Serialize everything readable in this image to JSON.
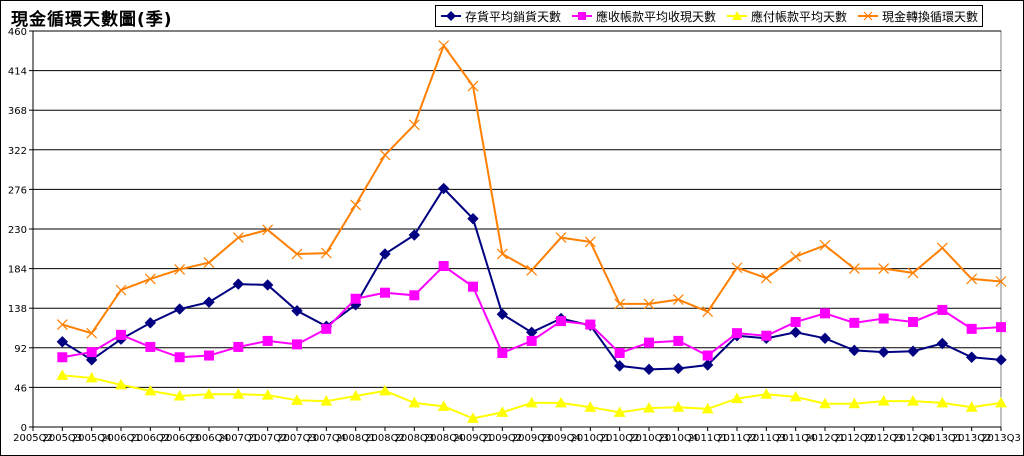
{
  "chart_data": {
    "type": "line",
    "title": "現金循環天數圖(季)",
    "xlabel": "",
    "ylabel": "",
    "ylim": [
      0,
      460
    ],
    "yticks": [
      0,
      46,
      92,
      138,
      184,
      230,
      276,
      322,
      368,
      414,
      460
    ],
    "grid": true,
    "legend_position": "top-right",
    "categories": [
      "2005Q2",
      "2005Q3",
      "2005Q4",
      "2006Q1",
      "2006Q2",
      "2006Q3",
      "2006Q4",
      "2007Q1",
      "2007Q2",
      "2007Q3",
      "2007Q4",
      "2008Q1",
      "2008Q2",
      "2008Q3",
      "2008Q4",
      "2009Q1",
      "2009Q2",
      "2009Q3",
      "2009Q4",
      "2010Q1",
      "2010Q2",
      "2010Q3",
      "2010Q4",
      "2011Q1",
      "2011Q2",
      "2011Q3",
      "2011Q4",
      "2012Q1",
      "2012Q2",
      "2012Q3",
      "2012Q4",
      "2013Q1",
      "2013Q2",
      "2013Q3"
    ],
    "series": [
      {
        "name": "存貨平均銷貨天數",
        "color": "#000080",
        "marker": "diamond",
        "values": [
          null,
          99,
          78,
          102,
          121,
          137,
          145,
          166,
          165,
          135,
          117,
          142,
          201,
          223,
          277,
          242,
          131,
          110,
          126,
          118,
          71,
          67,
          68,
          72,
          106,
          103,
          110,
          103,
          89,
          87,
          88,
          97,
          81,
          78
        ]
      },
      {
        "name": "應收帳款平均收現天數",
        "color": "#FF00FF",
        "marker": "square",
        "values": [
          null,
          81,
          87,
          107,
          93,
          81,
          83,
          93,
          100,
          96,
          114,
          149,
          156,
          153,
          187,
          163,
          86,
          100,
          123,
          119,
          86,
          98,
          100,
          83,
          109,
          106,
          122,
          132,
          121,
          126,
          122,
          136,
          114,
          116
        ]
      },
      {
        "name": "應付帳款平均天數",
        "color": "#FFFF00",
        "marker": "triangle",
        "values": [
          null,
          60,
          57,
          49,
          42,
          36,
          38,
          38,
          37,
          31,
          30,
          36,
          42,
          28,
          24,
          10,
          17,
          28,
          28,
          23,
          17,
          22,
          23,
          21,
          33,
          38,
          35,
          27,
          27,
          30,
          30,
          28,
          23,
          28
        ]
      },
      {
        "name": "現金轉換循環天數",
        "color": "#FF7F00",
        "marker": "x",
        "values": [
          null,
          119,
          109,
          159,
          172,
          183,
          191,
          220,
          229,
          201,
          202,
          258,
          316,
          351,
          443,
          396,
          201,
          182,
          220,
          215,
          143,
          143,
          148,
          134,
          185,
          173,
          198,
          211,
          184,
          184,
          179,
          208,
          172,
          169
        ]
      }
    ]
  }
}
